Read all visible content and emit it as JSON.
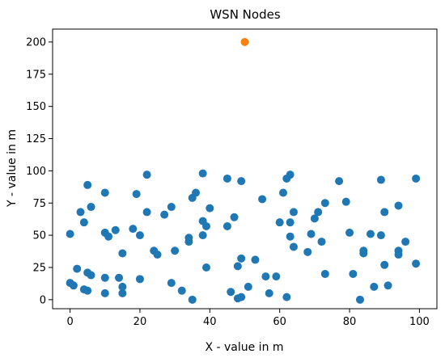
{
  "chart_data": {
    "type": "scatter",
    "title": "WSN Nodes",
    "xlabel": "X - value in m",
    "ylabel": "Y - value in m",
    "xlim": [
      -5,
      105
    ],
    "ylim": [
      -7,
      210
    ],
    "xticks": [
      0,
      20,
      40,
      60,
      80,
      100
    ],
    "yticks": [
      0,
      25,
      50,
      75,
      100,
      125,
      150,
      175,
      200
    ],
    "grid": false,
    "series": [
      {
        "color": "#1f77b4",
        "points": [
          [
            0,
            51
          ],
          [
            0,
            13
          ],
          [
            1,
            11
          ],
          [
            2,
            24
          ],
          [
            3,
            68
          ],
          [
            4,
            60
          ],
          [
            4,
            8
          ],
          [
            5,
            89
          ],
          [
            5,
            21
          ],
          [
            5,
            7
          ],
          [
            6,
            72
          ],
          [
            6,
            19
          ],
          [
            10,
            83
          ],
          [
            10,
            52
          ],
          [
            10,
            17
          ],
          [
            10,
            5
          ],
          [
            11,
            49
          ],
          [
            13,
            54
          ],
          [
            14,
            17
          ],
          [
            15,
            36
          ],
          [
            15,
            10
          ],
          [
            15,
            5
          ],
          [
            18,
            55
          ],
          [
            19,
            82
          ],
          [
            20,
            50
          ],
          [
            20,
            16
          ],
          [
            22,
            97
          ],
          [
            22,
            68
          ],
          [
            24,
            38
          ],
          [
            25,
            35
          ],
          [
            27,
            66
          ],
          [
            29,
            72
          ],
          [
            29,
            13
          ],
          [
            30,
            38
          ],
          [
            32,
            7
          ],
          [
            34,
            48
          ],
          [
            34,
            45
          ],
          [
            35,
            79
          ],
          [
            35,
            0
          ],
          [
            36,
            83
          ],
          [
            38,
            98
          ],
          [
            38,
            61
          ],
          [
            38,
            50
          ],
          [
            39,
            57
          ],
          [
            39,
            25
          ],
          [
            40,
            71
          ],
          [
            45,
            94
          ],
          [
            45,
            57
          ],
          [
            46,
            6
          ],
          [
            47,
            64
          ],
          [
            48,
            26
          ],
          [
            48,
            1
          ],
          [
            49,
            32
          ],
          [
            49,
            2
          ],
          [
            49,
            92
          ],
          [
            51,
            10
          ],
          [
            53,
            31
          ],
          [
            55,
            78
          ],
          [
            56,
            18
          ],
          [
            57,
            5
          ],
          [
            59,
            18
          ],
          [
            60,
            60
          ],
          [
            61,
            83
          ],
          [
            62,
            94
          ],
          [
            62,
            2
          ],
          [
            63,
            97
          ],
          [
            63,
            49
          ],
          [
            63,
            60
          ],
          [
            64,
            68
          ],
          [
            64,
            41
          ],
          [
            68,
            37
          ],
          [
            69,
            51
          ],
          [
            70,
            63
          ],
          [
            71,
            68
          ],
          [
            72,
            45
          ],
          [
            73,
            75
          ],
          [
            73,
            20
          ],
          [
            77,
            92
          ],
          [
            79,
            76
          ],
          [
            80,
            52
          ],
          [
            81,
            20
          ],
          [
            83,
            0
          ],
          [
            84,
            38
          ],
          [
            84,
            36
          ],
          [
            86,
            51
          ],
          [
            87,
            10
          ],
          [
            89,
            93
          ],
          [
            89,
            50
          ],
          [
            90,
            68
          ],
          [
            90,
            27
          ],
          [
            91,
            11
          ],
          [
            94,
            73
          ],
          [
            94,
            38
          ],
          [
            94,
            35
          ],
          [
            96,
            45
          ],
          [
            99,
            94
          ],
          [
            99,
            28
          ]
        ]
      },
      {
        "color": "#ff7f0e",
        "points": [
          [
            50,
            200
          ]
        ]
      }
    ]
  }
}
